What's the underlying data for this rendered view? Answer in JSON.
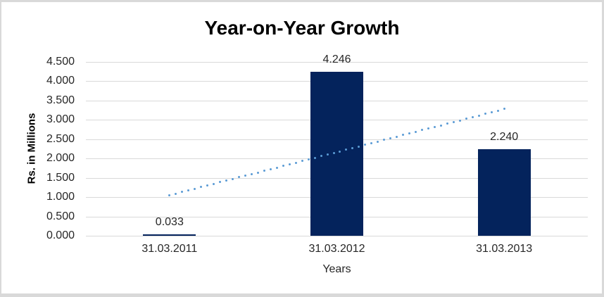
{
  "window": {
    "background_color": "#FFFFFF",
    "frame_color": "#D9D9D9"
  },
  "chart_data": {
    "type": "bar",
    "title": "Year-on-Year Growth",
    "xlabel": "Years",
    "ylabel": "Rs. in Millions",
    "categories": [
      "31.03.2011",
      "31.03.2012",
      "31.03.2013"
    ],
    "values": [
      0.033,
      4.246,
      2.24
    ],
    "data_labels": [
      "0.033",
      "4.246",
      "2.240"
    ],
    "ylim": [
      0,
      4.5
    ],
    "ytick_interval": 0.5,
    "ytick_labels": [
      "0.000",
      "0.500",
      "1.000",
      "1.500",
      "2.000",
      "2.500",
      "3.000",
      "3.500",
      "4.000",
      "4.500"
    ],
    "grid": true,
    "legend": "none",
    "bar_color": "#04235C",
    "gridline_color": "#D9D9D9",
    "text_color": "#262626",
    "trendline": {
      "type": "linear",
      "style": "dotted",
      "color": "#5B9BD5",
      "start_value": 1.05,
      "end_value": 3.28
    }
  }
}
